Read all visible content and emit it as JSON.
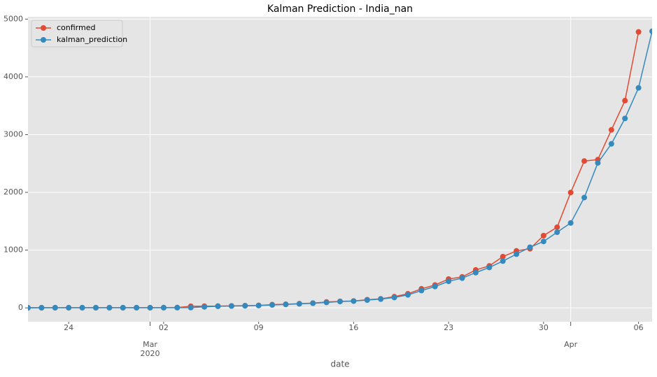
{
  "chart_data": {
    "type": "line",
    "title": "Kalman Prediction - India_nan",
    "x_label": "date",
    "x": [
      "2020-02-21",
      "2020-02-22",
      "2020-02-23",
      "2020-02-24",
      "2020-02-25",
      "2020-02-26",
      "2020-02-27",
      "2020-02-28",
      "2020-02-29",
      "2020-03-01",
      "2020-03-02",
      "2020-03-03",
      "2020-03-04",
      "2020-03-05",
      "2020-03-06",
      "2020-03-07",
      "2020-03-08",
      "2020-03-09",
      "2020-03-10",
      "2020-03-11",
      "2020-03-12",
      "2020-03-13",
      "2020-03-14",
      "2020-03-15",
      "2020-03-16",
      "2020-03-17",
      "2020-03-18",
      "2020-03-19",
      "2020-03-20",
      "2020-03-21",
      "2020-03-22",
      "2020-03-23",
      "2020-03-24",
      "2020-03-25",
      "2020-03-26",
      "2020-03-27",
      "2020-03-28",
      "2020-03-29",
      "2020-03-30",
      "2020-03-31",
      "2020-04-01",
      "2020-04-02",
      "2020-04-03",
      "2020-04-04",
      "2020-04-05",
      "2020-04-06",
      "2020-04-07"
    ],
    "series": [
      {
        "name": "confirmed",
        "color": "#E24A33",
        "values": [
          3,
          3,
          3,
          3,
          3,
          3,
          3,
          3,
          3,
          3,
          5,
          6,
          28,
          30,
          31,
          34,
          39,
          43,
          56,
          62,
          73,
          82,
          102,
          113,
          119,
          142,
          156,
          194,
          244,
          330,
          396,
          499,
          536,
          657,
          727,
          887,
          987,
          1024,
          1251,
          1397,
          1998,
          2543,
          2567,
          3082,
          3588,
          4778,
          null
        ]
      },
      {
        "name": "kalman_prediction",
        "color": "#348ABD",
        "values": [
          0,
          2,
          3,
          3,
          3,
          3,
          3,
          3,
          3,
          3,
          3,
          4,
          5,
          18,
          28,
          32,
          36,
          41,
          50,
          60,
          70,
          80,
          95,
          110,
          118,
          135,
          152,
          180,
          225,
          300,
          370,
          460,
          515,
          610,
          700,
          810,
          930,
          1050,
          1150,
          1310,
          1470,
          1910,
          2510,
          2840,
          3280,
          3810,
          4790
        ]
      }
    ],
    "xlim": [
      "2020-02-21",
      "2020-04-07"
    ],
    "xticks": [
      {
        "value": "2020-02-24",
        "label": "24"
      },
      {
        "value": "2020-03-01",
        "label": "Mar",
        "sublabel": "2020"
      },
      {
        "value": "2020-03-02",
        "label": "02"
      },
      {
        "value": "2020-03-09",
        "label": "09"
      },
      {
        "value": "2020-03-16",
        "label": "16"
      },
      {
        "value": "2020-03-23",
        "label": "23"
      },
      {
        "value": "2020-03-30",
        "label": "30"
      },
      {
        "value": "2020-04-01",
        "label": "Apr"
      },
      {
        "value": "2020-04-06",
        "label": "06"
      }
    ],
    "ylim": [
      -240,
      5040
    ],
    "yticks": [
      0,
      1000,
      2000,
      3000,
      4000,
      5000
    ],
    "grid": true,
    "legend": "upper left"
  }
}
